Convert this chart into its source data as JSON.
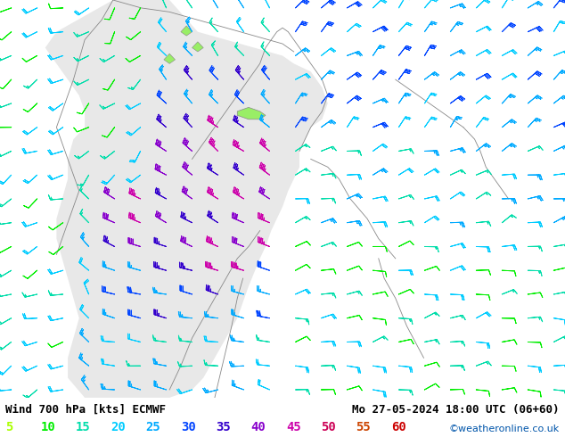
{
  "title_left": "Wind 700 hPa [kts] ECMWF",
  "title_right": "Mo 27-05-2024 18:00 UTC (06+60)",
  "watermark": "©weatheronline.co.uk",
  "legend_values": [
    5,
    10,
    15,
    20,
    25,
    30,
    35,
    40,
    45,
    50,
    55,
    60
  ],
  "legend_colors": [
    "#aaff00",
    "#00ee00",
    "#00ddaa",
    "#00ccff",
    "#00aaff",
    "#0044ff",
    "#3300cc",
    "#8800cc",
    "#cc00aa",
    "#cc0055",
    "#cc4400",
    "#cc0000"
  ],
  "bg_color": "#99ee66",
  "sea_color": "#e8e8e8",
  "coast_color": "#888888",
  "title_fontsize": 9,
  "legend_fontsize": 10,
  "figsize": [
    6.34,
    4.9
  ],
  "dpi": 100,
  "speed_colors": {
    "5": "#aaff00",
    "10": "#00ee00",
    "15": "#00ddaa",
    "20": "#00ccff",
    "25": "#00aaff",
    "30": "#0044ff",
    "35": "#3300cc",
    "40": "#8800cc",
    "45": "#cc00aa",
    "50": "#cc0055",
    "55": "#cc4400",
    "60": "#cc0000"
  }
}
